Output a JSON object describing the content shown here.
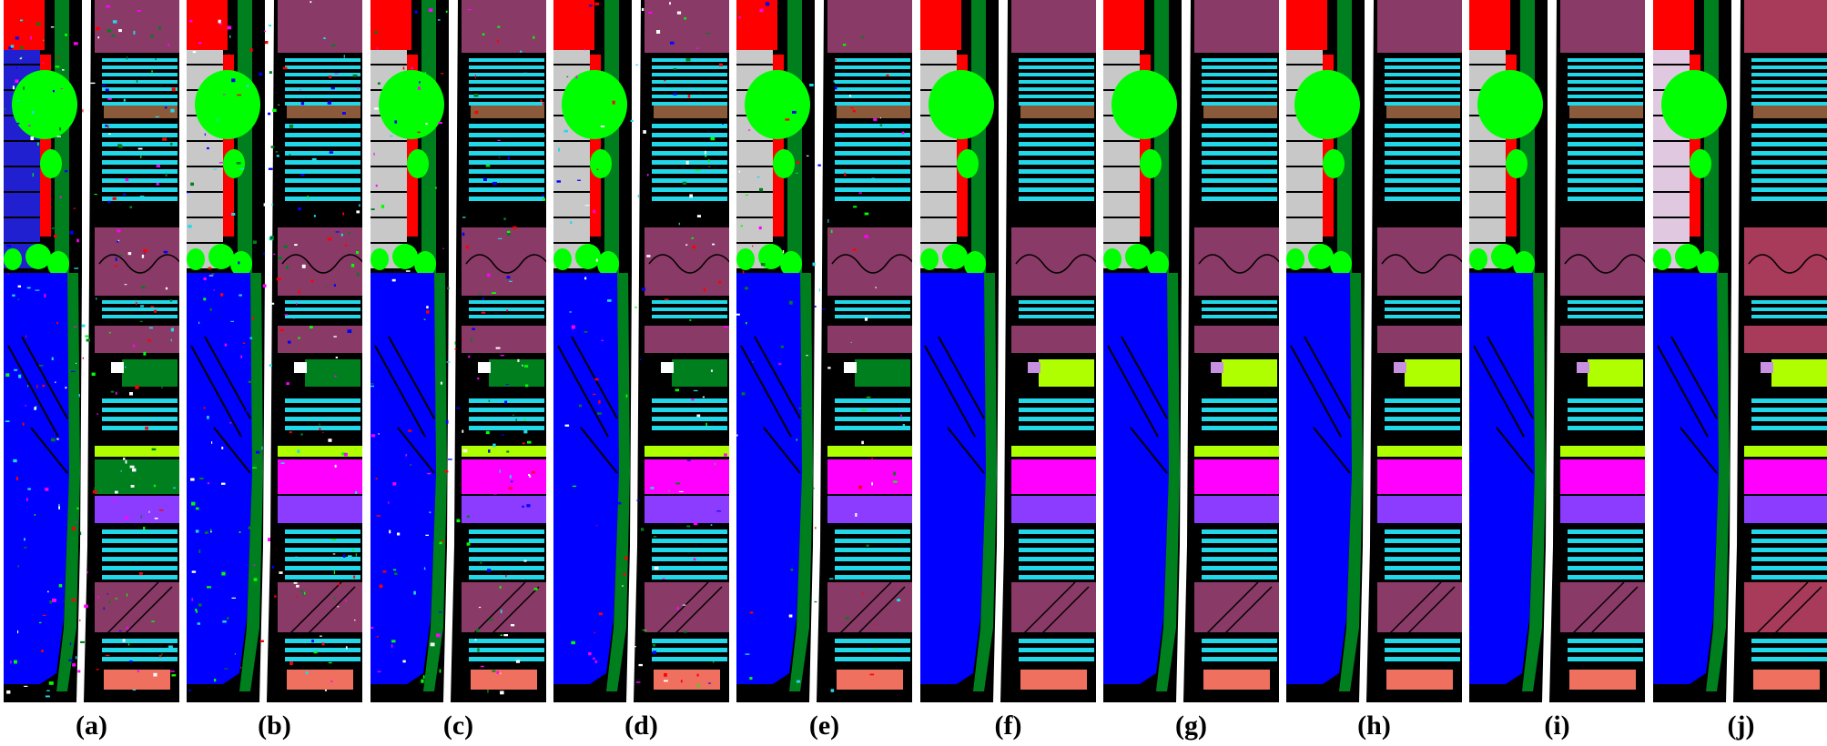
{
  "figure": {
    "panels": [
      {
        "label": "(a)"
      },
      {
        "label": "(b)"
      },
      {
        "label": "(c)"
      },
      {
        "label": "(d)"
      },
      {
        "label": "(e)"
      },
      {
        "label": "(f)"
      },
      {
        "label": "(g)"
      },
      {
        "label": "(h)"
      },
      {
        "label": "(i)"
      },
      {
        "label": "(j)"
      }
    ],
    "class_colors": {
      "background": "#000000",
      "road": "#ffffff",
      "brocoli": "#ff0000",
      "grapes": "#c8c8c8",
      "lettuce": "#00ff00",
      "vinyard": "#0000ff",
      "celery": "#007f1f",
      "fallow": "#8a3a66",
      "stubble": "#22d8e8",
      "soil": "#8a5a3a",
      "corn": "#ff00ff",
      "romaine": "#8c3cff",
      "lettuce4wk": "#b0ff00",
      "fallow_rough": "#c890e0",
      "soil_vinyard": "#f07060"
    }
  }
}
